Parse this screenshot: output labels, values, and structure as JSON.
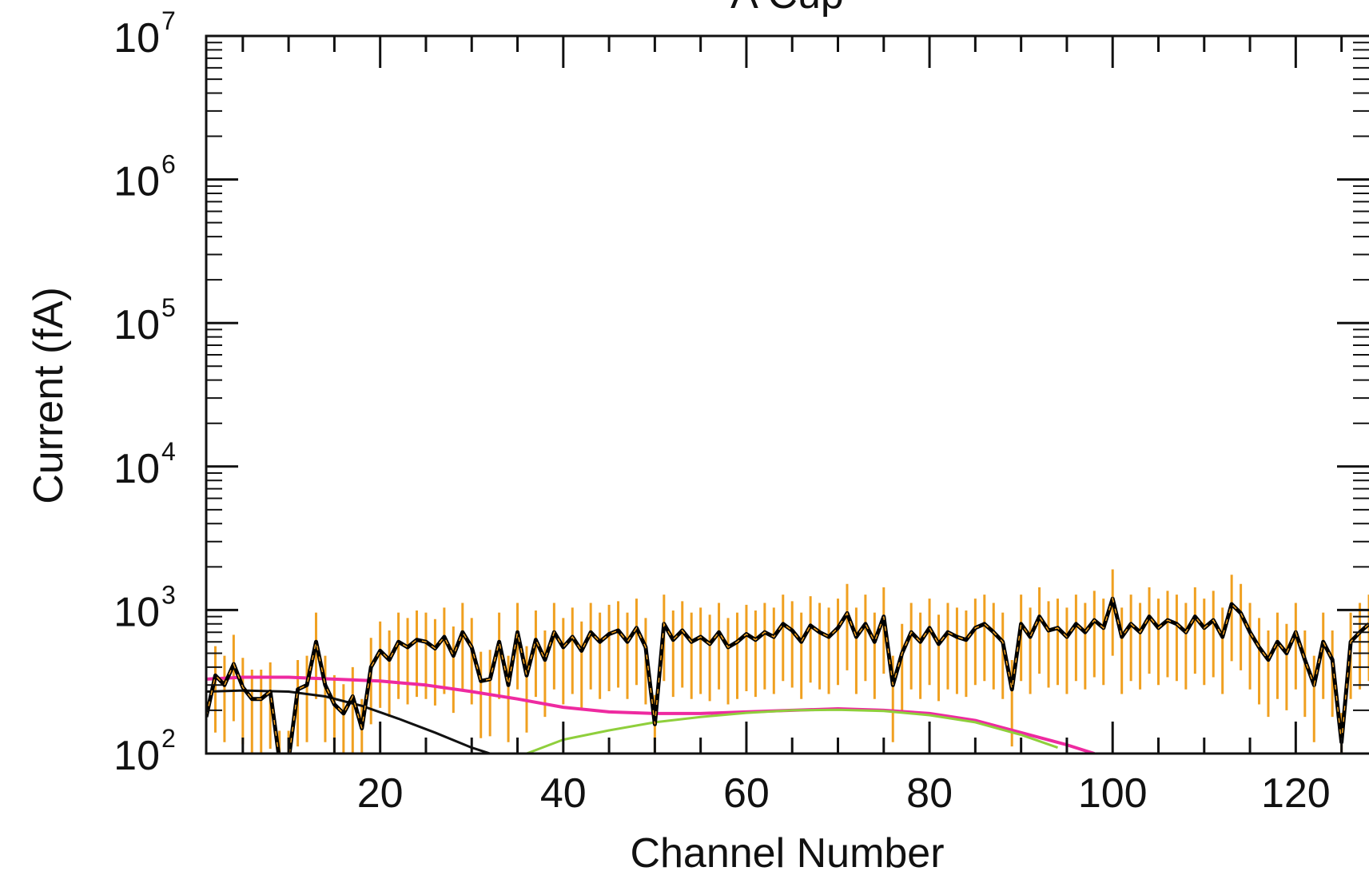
{
  "chart_data": {
    "type": "line",
    "title": "A Cup",
    "xlabel": "Channel Number",
    "ylabel": "Current (fA)",
    "xlim": [
      1,
      128
    ],
    "ylim": [
      100,
      10000000
    ],
    "yscale": "log",
    "x_ticks": [
      20,
      40,
      60,
      80,
      100,
      120
    ],
    "x_tick_labels": [
      "20",
      "40",
      "60",
      "80",
      "100",
      "120"
    ],
    "y_ticks": [
      100,
      1000,
      10000,
      100000,
      1000000,
      10000000
    ],
    "y_tick_labels": [
      {
        "base": "10",
        "exp": "2"
      },
      {
        "base": "10",
        "exp": "3"
      },
      {
        "base": "10",
        "exp": "4"
      },
      {
        "base": "10",
        "exp": "5"
      },
      {
        "base": "10",
        "exp": "6"
      },
      {
        "base": "10",
        "exp": "7"
      }
    ],
    "grid": false,
    "series": [
      {
        "color": "#000000",
        "style": "measured",
        "x": [
          1,
          2,
          3,
          4,
          5,
          6,
          7,
          8,
          9,
          10,
          11,
          12,
          13,
          14,
          15,
          16,
          17,
          18,
          19,
          20,
          21,
          22,
          23,
          24,
          25,
          26,
          27,
          28,
          29,
          30,
          31,
          32,
          33,
          34,
          35,
          36,
          37,
          38,
          39,
          40,
          41,
          42,
          43,
          44,
          45,
          46,
          47,
          48,
          49,
          50,
          51,
          52,
          53,
          54,
          55,
          56,
          57,
          58,
          59,
          60,
          61,
          62,
          63,
          64,
          65,
          66,
          67,
          68,
          69,
          70,
          71,
          72,
          73,
          74,
          75,
          76,
          77,
          78,
          79,
          80,
          81,
          82,
          83,
          84,
          85,
          86,
          87,
          88,
          89,
          90,
          91,
          92,
          93,
          94,
          95,
          96,
          97,
          98,
          99,
          100,
          101,
          102,
          103,
          104,
          105,
          106,
          107,
          108,
          109,
          110,
          111,
          112,
          113,
          114,
          115,
          116,
          117,
          118,
          119,
          120,
          121,
          122,
          123,
          124,
          125,
          126,
          127,
          128
        ],
        "values": [
          180,
          350,
          300,
          420,
          290,
          240,
          240,
          270,
          90,
          90,
          280,
          300,
          600,
          300,
          220,
          190,
          250,
          150,
          400,
          520,
          450,
          600,
          550,
          620,
          600,
          540,
          650,
          480,
          700,
          550,
          320,
          330,
          600,
          300,
          700,
          350,
          620,
          450,
          700,
          550,
          650,
          520,
          700,
          600,
          680,
          720,
          600,
          750,
          550,
          160,
          800,
          620,
          720,
          600,
          650,
          580,
          700,
          550,
          600,
          680,
          620,
          700,
          650,
          800,
          720,
          600,
          780,
          700,
          650,
          750,
          950,
          650,
          800,
          600,
          900,
          300,
          500,
          700,
          600,
          750,
          580,
          700,
          650,
          620,
          750,
          800,
          700,
          600,
          280,
          800,
          650,
          900,
          720,
          750,
          650,
          800,
          700,
          850,
          750,
          1200,
          650,
          800,
          700,
          900,
          750,
          850,
          800,
          700,
          900,
          750,
          850,
          650,
          1100,
          950,
          700,
          550,
          450,
          600,
          500,
          700,
          450,
          300,
          600,
          450,
          120,
          600,
          700,
          800
        ]
      },
      {
        "color": "#ee2aa0",
        "style": "fit-total",
        "x": [
          1,
          5,
          10,
          15,
          20,
          25,
          30,
          35,
          40,
          45,
          50,
          55,
          60,
          65,
          70,
          75,
          80,
          85,
          90,
          95,
          98
        ],
        "values": [
          330,
          340,
          340,
          330,
          320,
          300,
          270,
          240,
          210,
          195,
          190,
          190,
          195,
          200,
          205,
          200,
          190,
          170,
          140,
          115,
          100
        ]
      },
      {
        "color": "#111111",
        "style": "fit-component-1",
        "x": [
          1,
          5,
          10,
          14,
          18,
          22,
          26,
          30,
          32
        ],
        "values": [
          270,
          275,
          270,
          250,
          215,
          175,
          140,
          110,
          100
        ]
      },
      {
        "color": "#8fcf3c",
        "style": "fit-component-2",
        "x": [
          36,
          40,
          45,
          50,
          55,
          60,
          65,
          70,
          75,
          80,
          85,
          90,
          94
        ],
        "values": [
          100,
          125,
          145,
          165,
          180,
          192,
          200,
          202,
          198,
          185,
          165,
          135,
          110
        ]
      }
    ],
    "errorbar_color": "#f0a020"
  }
}
